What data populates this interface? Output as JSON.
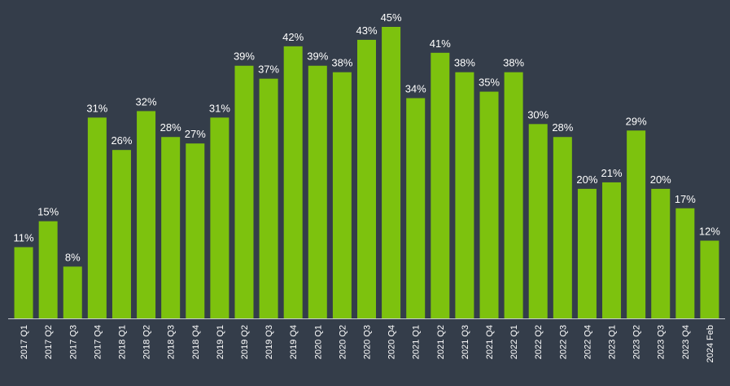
{
  "colors": {
    "background": "#343d4a",
    "bar": "#7dc20e",
    "axis": "#c7ccd3",
    "text": "#ffffff"
  },
  "chart_data": {
    "type": "bar",
    "title": "",
    "xlabel": "",
    "ylabel": "",
    "ylim": [
      0,
      45
    ],
    "grid": false,
    "legend": "none",
    "value_suffix": "%",
    "categories": [
      "2017 Q1",
      "2017 Q2",
      "2017 Q3",
      "2017 Q4",
      "2018 Q1",
      "2018 Q2",
      "2018 Q3",
      "2018 Q4",
      "2019 Q1",
      "2019 Q2",
      "2019 Q3",
      "2019 Q4",
      "2020 Q1",
      "2020 Q2",
      "2020 Q3",
      "2020 Q4",
      "2021 Q1",
      "2021 Q2",
      "2021 Q3",
      "2021 Q4",
      "2022 Q1",
      "2022 Q2",
      "2022 Q3",
      "2022 Q4",
      "2023 Q1",
      "2023 Q2",
      "2023 Q3",
      "2023 Q4",
      "2024 Feb"
    ],
    "values": [
      11,
      15,
      8,
      31,
      26,
      32,
      28,
      27,
      31,
      39,
      37,
      42,
      39,
      38,
      43,
      45,
      34,
      41,
      38,
      35,
      38,
      30,
      28,
      20,
      21,
      29,
      20,
      17,
      12
    ]
  }
}
